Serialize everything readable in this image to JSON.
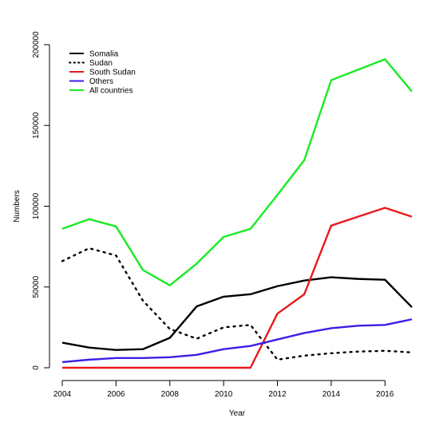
{
  "chart_data": {
    "type": "line",
    "title": "",
    "xlabel": "Year",
    "ylabel": "Numbers",
    "x": [
      2004,
      2005,
      2006,
      2007,
      2008,
      2009,
      2010,
      2011,
      2012,
      2013,
      2014,
      2015,
      2016,
      2017
    ],
    "xlim": [
      2004,
      2017
    ],
    "ylim": [
      0,
      200000
    ],
    "x_ticks": [
      2004,
      2006,
      2008,
      2010,
      2012,
      2014,
      2016
    ],
    "y_ticks": [
      0,
      50000,
      100000,
      150000,
      200000
    ],
    "grid": false,
    "legend_position": "top-left",
    "series": [
      {
        "name": "Somalia",
        "color": "#000000",
        "dash": "solid",
        "values": [
          15500,
          12500,
          11000,
          11500,
          18500,
          38000,
          44000,
          45500,
          50500,
          54000,
          56000,
          55000,
          54500,
          37500
        ]
      },
      {
        "name": "Sudan",
        "color": "#000000",
        "dash": "dotted",
        "values": [
          66000,
          74000,
          69500,
          41500,
          24000,
          18000,
          25000,
          26500,
          5000,
          7500,
          9000,
          10000,
          10500,
          9500
        ]
      },
      {
        "name": "South Sudan",
        "color": "#e8191b",
        "dash": "solid",
        "values": [
          0,
          0,
          0,
          0,
          0,
          0,
          0,
          0,
          33500,
          45500,
          88000,
          93500,
          99000,
          93500
        ]
      },
      {
        "name": "Others",
        "color": "#3b1fe6",
        "dash": "solid",
        "values": [
          3500,
          5000,
          6000,
          6000,
          6500,
          8000,
          11500,
          13500,
          17500,
          21500,
          24500,
          26000,
          26500,
          30000
        ]
      },
      {
        "name": "All countries",
        "color": "#1aea24",
        "dash": "solid",
        "values": [
          86000,
          92000,
          87500,
          60500,
          51000,
          64500,
          81000,
          86000,
          107000,
          128500,
          178000,
          184500,
          191000,
          171000
        ]
      }
    ]
  }
}
